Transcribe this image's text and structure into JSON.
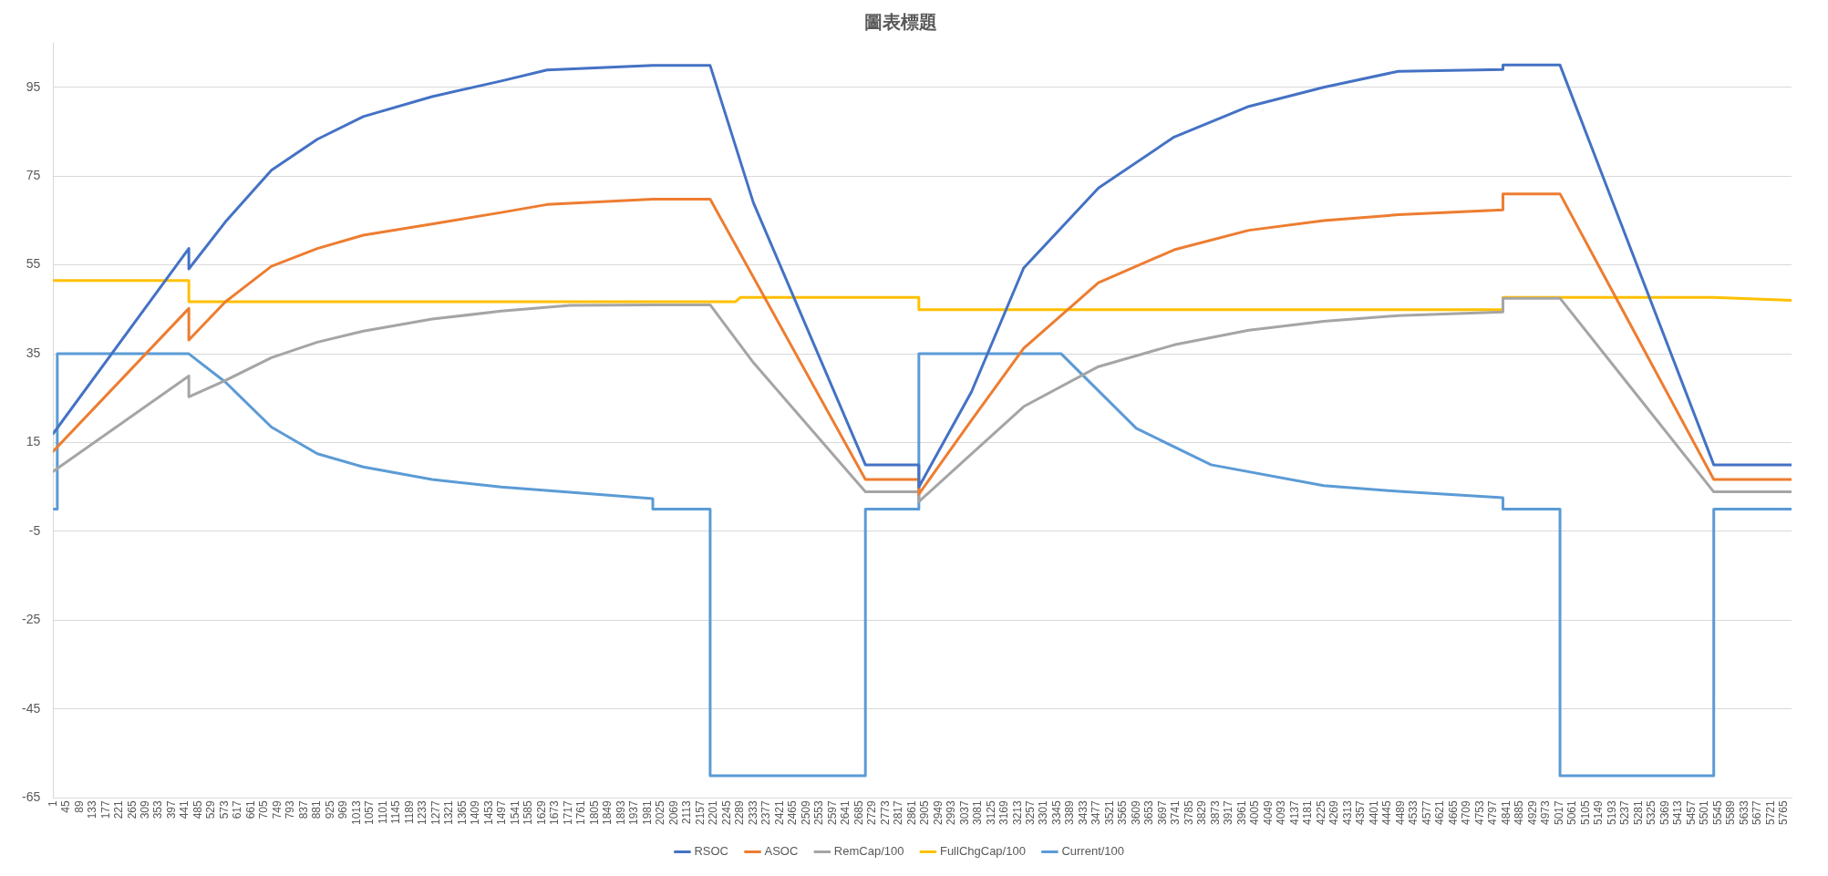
{
  "chart_data": {
    "type": "line",
    "title": "圖表標題",
    "xlim": [
      1,
      5790
    ],
    "xticks": [
      1,
      45,
      89,
      133,
      177,
      221,
      265,
      309,
      353,
      397,
      441,
      485,
      529,
      573,
      617,
      661,
      705,
      749,
      793,
      837,
      881,
      925,
      969,
      1013,
      1057,
      1101,
      1145,
      1189,
      1233,
      1277,
      1321,
      1365,
      1409,
      1453,
      1497,
      1541,
      1585,
      1629,
      1673,
      1717,
      1761,
      1805,
      1849,
      1893,
      1937,
      1981,
      2025,
      2069,
      2113,
      2157,
      2201,
      2245,
      2289,
      2333,
      2377,
      2421,
      2465,
      2509,
      2553,
      2597,
      2641,
      2685,
      2729,
      2773,
      2817,
      2861,
      2905,
      2949,
      2993,
      3037,
      3081,
      3125,
      3169,
      3213,
      3257,
      3301,
      3345,
      3389,
      3433,
      3477,
      3521,
      3565,
      3609,
      3653,
      3697,
      3741,
      3785,
      3829,
      3873,
      3917,
      3961,
      4005,
      4049,
      4093,
      4137,
      4181,
      4225,
      4269,
      4313,
      4357,
      4401,
      4445,
      4489,
      4533,
      4577,
      4621,
      4665,
      4709,
      4753,
      4797,
      4841,
      4885,
      4929,
      4973,
      5017,
      5061,
      5105,
      5149,
      5193,
      5237,
      5281,
      5325,
      5369,
      5413,
      5457,
      5501,
      5545,
      5589,
      5633,
      5677,
      5721,
      5765
    ],
    "ylim": [
      -65,
      105
    ],
    "yticks": [
      -65,
      -45,
      -25,
      -5,
      15,
      35,
      55,
      75,
      95
    ],
    "grid": "y",
    "legend": "bottom",
    "marker": "none",
    "line_style": "solid",
    "series": [
      {
        "name": "RSOC",
        "color": "#4472c4",
        "x": [
          1,
          453,
          453,
          575,
          728,
          881,
          1034,
          1263,
          1493,
          1646,
          1998,
          2189,
          2333,
          2706,
          2884,
          2884,
          3059,
          3233,
          3482,
          3734,
          3983,
          4232,
          4481,
          4829,
          4829,
          5019,
          5531,
          5790
        ],
        "values": [
          17,
          58.7,
          54.1,
          64.7,
          76.3,
          83.3,
          88.4,
          92.9,
          96.4,
          98.9,
          99.9,
          99.9,
          69,
          10,
          10,
          5,
          26.4,
          54.3,
          72.3,
          83.8,
          90.7,
          95,
          98.6,
          99,
          100,
          100,
          10,
          10
        ]
      },
      {
        "name": "ASOC",
        "color": "#ed7d31",
        "x": [
          1,
          453,
          453,
          575,
          728,
          881,
          1034,
          1263,
          1493,
          1646,
          1998,
          2189,
          2706,
          2884,
          2884,
          3059,
          3233,
          3482,
          3734,
          3983,
          4232,
          4481,
          4829,
          4829,
          5019,
          5531,
          5790
        ],
        "values": [
          13,
          45.2,
          38.1,
          46.7,
          54.7,
          58.7,
          61.7,
          64.2,
          66.8,
          68.6,
          69.8,
          69.8,
          6.7,
          6.7,
          3.4,
          20,
          36.2,
          51,
          58.4,
          62.8,
          65,
          66.3,
          67.4,
          71,
          71,
          6.7,
          6.7
        ]
      },
      {
        "name": "RemCap/100",
        "color": "#a5a5a5",
        "x": [
          1,
          453,
          453,
          575,
          728,
          881,
          1034,
          1263,
          1493,
          1722,
          1998,
          2189,
          2333,
          2706,
          2884,
          2884,
          3233,
          3482,
          3734,
          3983,
          4232,
          4481,
          4829,
          4829,
          5019,
          5531,
          5790
        ],
        "values": [
          8.5,
          30,
          25.3,
          29,
          34.1,
          37.6,
          40.1,
          42.8,
          44.6,
          45.9,
          46,
          46,
          33,
          3.9,
          3.9,
          1.7,
          23.1,
          32.1,
          37,
          40.3,
          42.3,
          43.6,
          44.4,
          47.5,
          47.5,
          3.9,
          3.9
        ]
      },
      {
        "name": "FullChgCap/100",
        "color": "#ffc000",
        "x": [
          1,
          453,
          453,
          2273,
          2290,
          2884,
          2884,
          4829,
          4829,
          5531,
          5790
        ],
        "values": [
          51.5,
          51.5,
          46.7,
          46.7,
          47.7,
          47.7,
          44.9,
          44.9,
          47.7,
          47.7,
          47
        ]
      },
      {
        "name": "Current/100",
        "color": "#5b9bd5",
        "x": [
          1,
          15,
          15,
          453,
          575,
          728,
          881,
          1034,
          1263,
          1493,
          1722,
          1998,
          1998,
          2189,
          2189,
          2706,
          2706,
          2884,
          2884,
          3358,
          3608,
          3857,
          4232,
          4481,
          4829,
          4829,
          5019,
          5019,
          5531,
          5531,
          5790
        ],
        "values": [
          0,
          0,
          35,
          35,
          28.6,
          18.5,
          12.5,
          9.5,
          6.7,
          5,
          3.8,
          2.4,
          0,
          0,
          -60,
          -60,
          0,
          0,
          35,
          35,
          18.2,
          10,
          5.3,
          4,
          2.6,
          0,
          0,
          -60,
          -60,
          0,
          0
        ]
      }
    ]
  }
}
